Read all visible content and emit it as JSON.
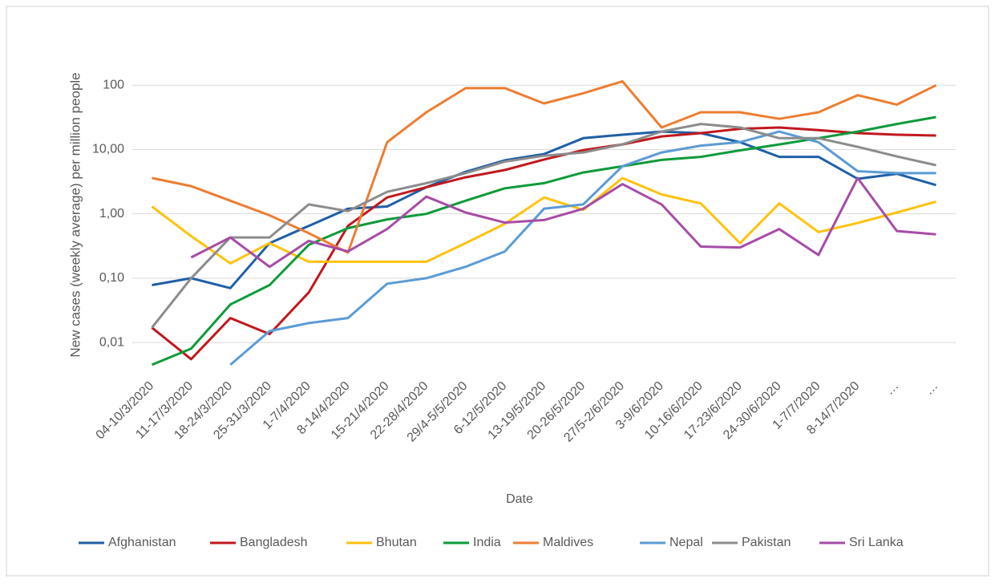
{
  "chart_data": {
    "type": "line",
    "x_label": "Date",
    "y_label": "New cases (weekly average) per million people",
    "categories": [
      "04-10/3/2020",
      "11-17/3/2020",
      "18-24/3/2020",
      "25-31/3/2020",
      "1-7/4/2020",
      "8-14/4/2020",
      "15-21/4/2020",
      "22-28/4/2020",
      "29/4-5/5/2020",
      "6-12/5/2020",
      "13-19/5/2020",
      "20-26/5/2020",
      "27/5-2/6/2020",
      "3-9/6/2020",
      "10-16/6/2020",
      "17-23/6/2020",
      "24-30/6/2020",
      "1-7/7/2020",
      "8-14/7/2020",
      "…",
      "…"
    ],
    "log_scale": true,
    "grid": true,
    "legend": "bottom",
    "ylim": [
      0.003,
      300
    ],
    "yticks": [
      {
        "value": 0.01,
        "label": "0,01"
      },
      {
        "value": 0.1,
        "label": "0,10"
      },
      {
        "value": 1,
        "label": "1,00"
      },
      {
        "value": 10,
        "label": "10,00"
      },
      100
    ],
    "series": [
      {
        "name": "Afghanistan",
        "color": "#1f5fa6",
        "values": [
          0.078,
          0.1,
          0.07,
          0.35,
          0.65,
          1.2,
          1.3,
          2.6,
          4.5,
          6.8,
          8.5,
          15,
          17,
          19,
          18,
          13,
          7.7,
          7.7,
          3.5,
          4.2,
          2.8
        ]
      },
      {
        "name": "Bangladesh",
        "color": "#c0181e",
        "values": [
          0.017,
          0.0055,
          0.024,
          0.0135,
          0.06,
          0.65,
          1.8,
          2.6,
          3.7,
          4.8,
          7,
          9.8,
          12,
          16,
          18,
          21,
          22,
          20,
          18,
          17,
          16.5
        ]
      },
      {
        "name": "Bhutan",
        "color": "#ffc20e",
        "values": [
          1.3,
          0.45,
          0.17,
          0.35,
          0.18,
          0.18,
          0.18,
          0.18,
          0.35,
          0.7,
          1.8,
          1.15,
          3.6,
          2.0,
          1.45,
          0.35,
          1.45,
          0.52,
          0.72,
          1.05,
          1.55
        ]
      },
      {
        "name": "India",
        "color": "#0e9a3a",
        "values": [
          0.0045,
          0.008,
          0.039,
          0.078,
          0.33,
          0.6,
          0.82,
          1.0,
          1.6,
          2.5,
          3.0,
          4.4,
          5.5,
          6.9,
          7.7,
          9.7,
          12,
          15,
          19,
          25,
          32
        ]
      },
      {
        "name": "Maldives",
        "color": "#ed7d31",
        "values": [
          3.6,
          2.7,
          1.6,
          0.95,
          0.5,
          0.25,
          13,
          38,
          90,
          90,
          52,
          75,
          115,
          22,
          38,
          38,
          30,
          38,
          70,
          50,
          100
        ]
      },
      {
        "name": "Nepal",
        "color": "#5b9bd5",
        "values": [
          null,
          null,
          0.0045,
          0.015,
          0.02,
          0.024,
          0.082,
          0.1,
          0.15,
          0.26,
          1.2,
          1.4,
          5.5,
          9,
          11.5,
          13,
          19,
          13,
          4.6,
          4.3,
          4.3
        ]
      },
      {
        "name": "Pakistan",
        "color": "#8c8c8c",
        "values": [
          0.017,
          0.1,
          0.43,
          0.43,
          1.4,
          1.1,
          2.2,
          3.0,
          4.3,
          6.5,
          8,
          9,
          12,
          19,
          25,
          22,
          15,
          15,
          11,
          7.8,
          5.7
        ]
      },
      {
        "name": "Sri Lanka",
        "color": "#a64ca6",
        "values": [
          null,
          0.21,
          0.43,
          0.15,
          0.38,
          0.26,
          0.58,
          1.85,
          1.05,
          0.73,
          0.8,
          1.2,
          2.9,
          1.4,
          0.31,
          0.3,
          0.58,
          0.23,
          3.6,
          0.54,
          0.48
        ]
      }
    ]
  }
}
